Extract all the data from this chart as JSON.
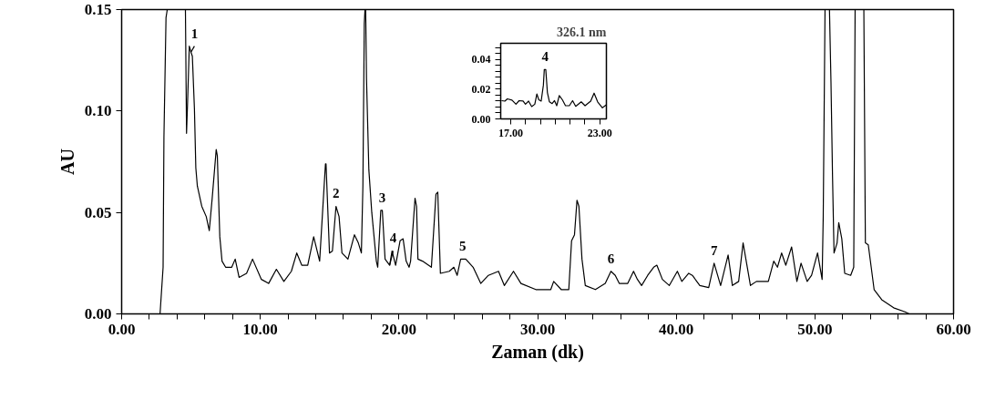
{
  "chart_data": [
    {
      "type": "line",
      "xlabel": "Zaman (dk)",
      "ylabel": "AU",
      "xlim": [
        0,
        60
      ],
      "ylim": [
        0,
        0.15
      ],
      "grid": false,
      "marker": "none",
      "line_style": "solid",
      "xticks": [
        {
          "value": 0,
          "label": "0.00"
        },
        {
          "value": 2,
          "label": null
        },
        {
          "value": 4,
          "label": null
        },
        {
          "value": 6,
          "label": null
        },
        {
          "value": 8,
          "label": null
        },
        {
          "value": 10,
          "label": "10.00"
        },
        {
          "value": 12,
          "label": null
        },
        {
          "value": 14,
          "label": null
        },
        {
          "value": 16,
          "label": null
        },
        {
          "value": 18,
          "label": null
        },
        {
          "value": 20,
          "label": "20.00"
        },
        {
          "value": 22,
          "label": null
        },
        {
          "value": 24,
          "label": null
        },
        {
          "value": 26,
          "label": null
        },
        {
          "value": 28,
          "label": null
        },
        {
          "value": 30,
          "label": "30.00"
        },
        {
          "value": 32,
          "label": null
        },
        {
          "value": 34,
          "label": null
        },
        {
          "value": 36,
          "label": null
        },
        {
          "value": 38,
          "label": null
        },
        {
          "value": 40,
          "label": "40.00"
        },
        {
          "value": 42,
          "label": null
        },
        {
          "value": 44,
          "label": null
        },
        {
          "value": 46,
          "label": null
        },
        {
          "value": 48,
          "label": null
        },
        {
          "value": 50,
          "label": "50.00"
        },
        {
          "value": 52,
          "label": null
        },
        {
          "value": 54,
          "label": null
        },
        {
          "value": 56,
          "label": null
        },
        {
          "value": 58,
          "label": null
        },
        {
          "value": 60,
          "label": "60.00"
        }
      ],
      "yticks": [
        {
          "value": 0,
          "label": "0.00"
        },
        {
          "value": 0.05,
          "label": "0.05"
        },
        {
          "value": 0.1,
          "label": "0.10"
        },
        {
          "value": 0.15,
          "label": "0.15"
        }
      ],
      "series": [
        {
          "color": "#000000",
          "x": [
            0,
            2.77,
            2.99,
            3.05,
            3.2,
            3.29,
            4.6,
            4.68,
            4.75,
            4.88,
            5.0,
            5.1,
            5.25,
            5.35,
            5.46,
            5.78,
            6.1,
            6.32,
            6.53,
            6.82,
            6.9,
            7.08,
            7.24,
            7.5,
            7.94,
            8.19,
            8.47,
            9.01,
            9.44,
            10.08,
            10.6,
            11.16,
            11.7,
            12.24,
            12.63,
            12.99,
            13.42,
            13.85,
            14.28,
            14.7,
            14.74,
            14.99,
            15.2,
            15.46,
            15.68,
            15.89,
            16.32,
            16.79,
            17.07,
            17.29,
            17.4,
            17.5,
            17.55,
            17.6,
            17.66,
            17.83,
            18.04,
            18.37,
            18.47,
            18.69,
            18.8,
            19.0,
            19.33,
            19.5,
            19.76,
            20.08,
            20.3,
            20.52,
            20.73,
            20.84,
            21.16,
            21.27,
            21.37,
            21.7,
            22.34,
            22.67,
            22.8,
            22.99,
            23.63,
            23.96,
            24.2,
            24.45,
            24.82,
            25.35,
            25.9,
            26.45,
            27.18,
            27.6,
            28.26,
            28.8,
            29.87,
            30.95,
            31.16,
            31.7,
            32.25,
            32.45,
            32.66,
            32.84,
            32.98,
            33.2,
            33.44,
            34.17,
            34.88,
            35.29,
            35.6,
            35.89,
            36.5,
            36.92,
            37.2,
            37.5,
            37.94,
            38.37,
            38.6,
            39.0,
            39.5,
            40.08,
            40.4,
            40.9,
            41.16,
            41.7,
            42.34,
            42.73,
            43.2,
            43.74,
            44.05,
            44.5,
            44.82,
            45.35,
            45.78,
            46.64,
            47.03,
            47.3,
            47.6,
            47.9,
            48.32,
            48.7,
            49.0,
            49.44,
            49.76,
            50.19,
            50.52,
            50.6,
            50.73,
            51.05,
            51.16,
            51.27,
            51.38,
            51.6,
            51.72,
            51.94,
            52.15,
            52.58,
            52.8,
            52.9,
            53.53,
            53.64,
            53.85,
            54.06,
            54.27,
            54.82,
            55.68,
            56.5,
            56.8
          ],
          "values": [
            0,
            0,
            0.023,
            0.087,
            0.146,
            0.15,
            0.15,
            0.089,
            0.103,
            0.132,
            0.129,
            0.127,
            0.101,
            0.072,
            0.063,
            0.053,
            0.048,
            0.041,
            0.057,
            0.081,
            0.078,
            0.038,
            0.026,
            0.023,
            0.023,
            0.027,
            0.018,
            0.02,
            0.027,
            0.017,
            0.015,
            0.022,
            0.016,
            0.021,
            0.03,
            0.024,
            0.024,
            0.038,
            0.026,
            0.074,
            0.074,
            0.03,
            0.031,
            0.053,
            0.048,
            0.03,
            0.027,
            0.039,
            0.035,
            0.03,
            0.063,
            0.143,
            0.15,
            0.15,
            0.116,
            0.071,
            0.05,
            0.026,
            0.023,
            0.051,
            0.051,
            0.027,
            0.024,
            0.031,
            0.024,
            0.036,
            0.037,
            0.026,
            0.023,
            0.026,
            0.057,
            0.053,
            0.027,
            0.026,
            0.023,
            0.059,
            0.06,
            0.02,
            0.021,
            0.023,
            0.019,
            0.027,
            0.027,
            0.023,
            0.015,
            0.019,
            0.021,
            0.014,
            0.021,
            0.015,
            0.012,
            0.012,
            0.016,
            0.012,
            0.012,
            0.036,
            0.039,
            0.056,
            0.053,
            0.027,
            0.014,
            0.012,
            0.015,
            0.021,
            0.019,
            0.015,
            0.015,
            0.021,
            0.017,
            0.014,
            0.019,
            0.023,
            0.024,
            0.017,
            0.014,
            0.021,
            0.016,
            0.02,
            0.019,
            0.014,
            0.013,
            0.025,
            0.014,
            0.029,
            0.014,
            0.016,
            0.035,
            0.014,
            0.016,
            0.016,
            0.026,
            0.023,
            0.03,
            0.024,
            0.033,
            0.016,
            0.025,
            0.016,
            0.019,
            0.03,
            0.017,
            0.048,
            0.15,
            0.15,
            0.114,
            0.068,
            0.03,
            0.035,
            0.045,
            0.037,
            0.02,
            0.019,
            0.023,
            0.15,
            0.15,
            0.035,
            0.034,
            0.023,
            0.012,
            0.007,
            0.003,
            0.001,
            0
          ]
        }
      ],
      "annotations": [
        {
          "text": "1",
          "x": 5.0,
          "y": 0.129
        },
        {
          "text": "2",
          "x": 15.46,
          "y": 0.053
        },
        {
          "text": "3",
          "x": 18.8,
          "y": 0.051
        },
        {
          "text": "4",
          "x": 19.33,
          "y": 0.024
        },
        {
          "text": "5",
          "x": 24.6,
          "y": 0.027
        },
        {
          "text": "6",
          "x": 35.29,
          "y": 0.021
        },
        {
          "text": "7",
          "x": 42.73,
          "y": 0.025
        }
      ]
    },
    {
      "type": "line",
      "title": "326.1 nm",
      "xlim": [
        16.32,
        23.45
      ],
      "ylim": [
        0,
        0.051
      ],
      "grid": false,
      "marker": "none",
      "line_style": "solid",
      "xticks": [
        {
          "value": 17,
          "label": "17.00"
        },
        {
          "value": 18,
          "label": null
        },
        {
          "value": 19,
          "label": null
        },
        {
          "value": 20,
          "label": null
        },
        {
          "value": 21,
          "label": null
        },
        {
          "value": 22,
          "label": null
        },
        {
          "value": 23,
          "label": "23.00"
        }
      ],
      "yticks": [
        {
          "value": 0,
          "label": "0.00"
        },
        {
          "value": 0.004,
          "label": null
        },
        {
          "value": 0.008,
          "label": null
        },
        {
          "value": 0.012,
          "label": null
        },
        {
          "value": 0.016,
          "label": null
        },
        {
          "value": 0.02,
          "label": "0.02"
        },
        {
          "value": 0.024,
          "label": null
        },
        {
          "value": 0.028,
          "label": null
        },
        {
          "value": 0.032,
          "label": null
        },
        {
          "value": 0.036,
          "label": null
        },
        {
          "value": 0.04,
          "label": "0.04"
        },
        {
          "value": 0.044,
          "label": null
        },
        {
          "value": 0.048,
          "label": null
        }
      ],
      "series": [
        {
          "color": "#000000",
          "x": [
            16.4,
            16.6,
            16.77,
            17.08,
            17.35,
            17.56,
            17.83,
            17.99,
            18.2,
            18.41,
            18.62,
            18.76,
            18.89,
            19.05,
            19.2,
            19.26,
            19.36,
            19.47,
            19.61,
            19.79,
            19.95,
            20.1,
            20.27,
            20.48,
            20.69,
            20.95,
            21.17,
            21.38,
            21.75,
            22.01,
            22.39,
            22.62,
            22.86,
            23.18,
            23.45
          ],
          "values": [
            0.0123,
            0.012,
            0.0135,
            0.0127,
            0.0099,
            0.0123,
            0.012,
            0.0099,
            0.012,
            0.0083,
            0.0099,
            0.0168,
            0.0129,
            0.012,
            0.0228,
            0.0333,
            0.0333,
            0.0178,
            0.0115,
            0.0103,
            0.0123,
            0.0089,
            0.0158,
            0.0129,
            0.0089,
            0.0089,
            0.0123,
            0.0085,
            0.0115,
            0.0089,
            0.012,
            0.0174,
            0.0115,
            0.0075,
            0.0095
          ]
        }
      ],
      "annotations": [
        {
          "text": "4",
          "x": 19.31,
          "y": 0.0333
        }
      ]
    }
  ]
}
